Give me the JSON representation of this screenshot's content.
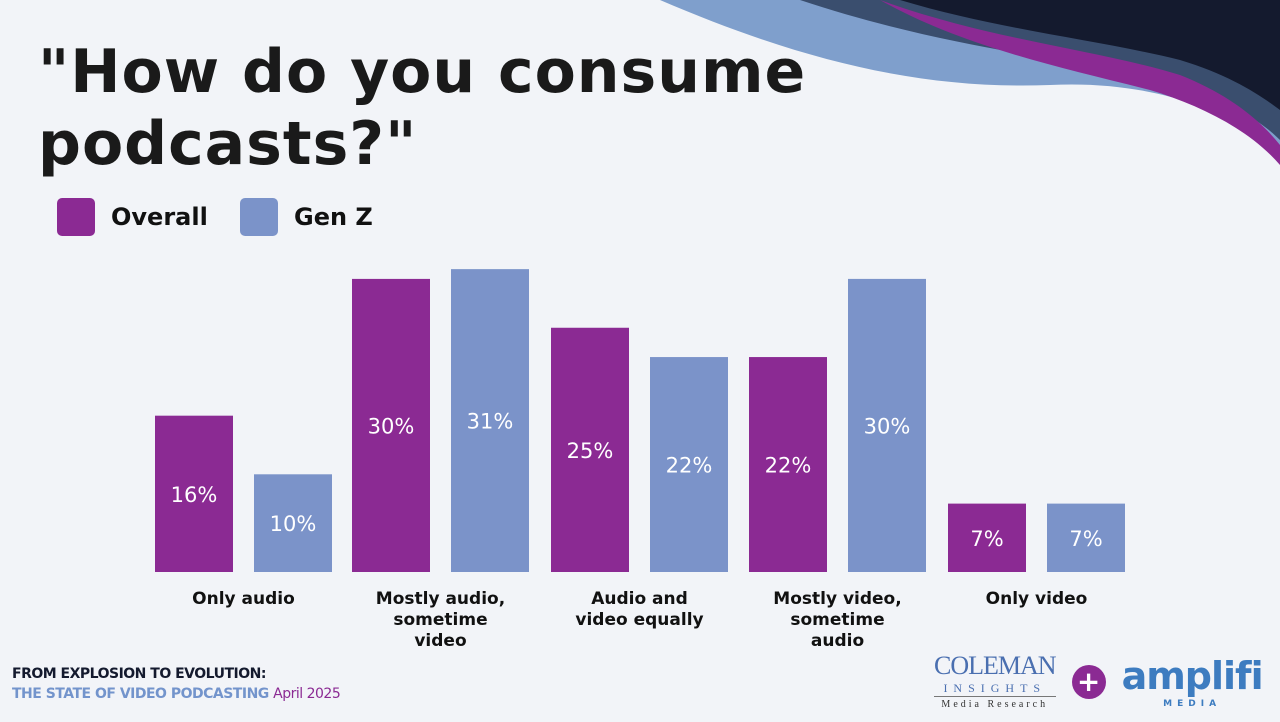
{
  "title": "\"How do you consume podcasts?\"",
  "colors": {
    "overall": "#8b2a93",
    "genz": "#7b93c9",
    "navy": "#141a2e"
  },
  "chart_data": {
    "type": "bar",
    "title": "\"How do you consume podcasts?\"",
    "categories": [
      [
        "Only audio"
      ],
      [
        "Mostly audio,",
        "sometime",
        "video"
      ],
      [
        "Audio and",
        "video equally"
      ],
      [
        "Mostly video,",
        "sometime",
        "audio"
      ],
      [
        "Only video"
      ]
    ],
    "series": [
      {
        "name": "Overall",
        "values": [
          16,
          30,
          25,
          22,
          7
        ],
        "labels": [
          "16%",
          "30%",
          "25%",
          "22%",
          "7%"
        ]
      },
      {
        "name": "Gen Z",
        "values": [
          10,
          31,
          22,
          30,
          7
        ],
        "labels": [
          "10%",
          "31%",
          "22%",
          "30%",
          "7%"
        ]
      }
    ],
    "legend": "top-left",
    "grid": false,
    "ylim": [
      0,
      31
    ]
  },
  "footer": {
    "line1": "FROM EXPLOSION TO EVOLUTION:",
    "line2": "THE STATE OF VIDEO PODCASTING",
    "date": "April 2025"
  },
  "logos": {
    "coleman": [
      "COLEMAN",
      "INSIGHTS",
      "Media Research"
    ],
    "plus": "+",
    "amplifi": [
      "amplifi",
      "MEDIA"
    ]
  }
}
